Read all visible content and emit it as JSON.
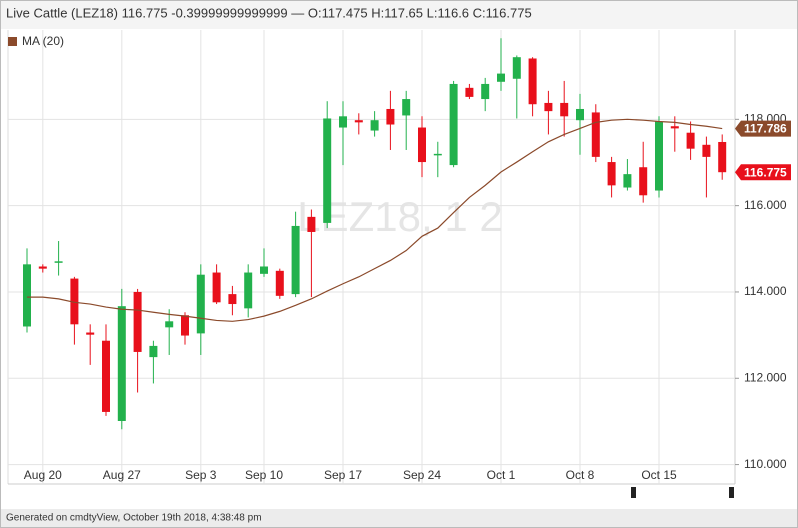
{
  "chart_data": {
    "type": "candlestick",
    "title": "Live Cattle (LEZ18) 116.775 -0.39999999999999 — O:117.475 H:117.65 L:116.6 C:116.775",
    "watermark": "LEZ18, 1 2",
    "footer": "Generated on cmdtyView, October 19th 2018, 4:38:48 pm",
    "categories": [
      null,
      "Aug 20",
      null,
      null,
      null,
      null,
      "Aug 27",
      null,
      null,
      null,
      null,
      "Sep 3",
      null,
      null,
      null,
      "Sep 10",
      null,
      null,
      null,
      null,
      "Sep 17",
      null,
      null,
      null,
      null,
      "Sep 24",
      null,
      null,
      null,
      null,
      "Oct 1",
      null,
      null,
      null,
      null,
      "Oct 8",
      null,
      null,
      null,
      null,
      "Oct 15",
      null,
      null,
      null,
      null
    ],
    "open": [
      113.2,
      114.59,
      114.68,
      114.31,
      113.06,
      112.87,
      111.01,
      114.0,
      112.49,
      113.18,
      113.46,
      113.04,
      114.45,
      113.95,
      113.62,
      114.42,
      114.49,
      113.95,
      115.74,
      115.6,
      117.81,
      117.98,
      117.74,
      118.24,
      118.09,
      117.81,
      117.18,
      116.94,
      118.73,
      118.47,
      118.87,
      118.94,
      119.41,
      118.38,
      118.38,
      117.98,
      118.16,
      117.01,
      116.42,
      116.89,
      116.35,
      117.84,
      117.69,
      117.41,
      117.475
    ],
    "high": [
      115.01,
      114.64,
      115.18,
      114.35,
      113.25,
      113.25,
      114.07,
      114.07,
      112.87,
      113.6,
      113.53,
      114.64,
      114.64,
      114.14,
      114.64,
      115.01,
      114.54,
      115.86,
      115.91,
      118.42,
      118.42,
      118.14,
      118.19,
      118.66,
      118.66,
      118.07,
      117.48,
      118.89,
      118.82,
      118.96,
      119.88,
      119.48,
      119.44,
      118.66,
      118.89,
      118.59,
      118.35,
      117.13,
      117.08,
      117.48,
      118.07,
      118.07,
      117.95,
      117.6,
      117.65
    ],
    "low": [
      113.06,
      114.45,
      114.38,
      112.78,
      112.31,
      111.13,
      110.82,
      111.67,
      111.88,
      112.54,
      112.78,
      112.54,
      113.72,
      113.46,
      113.41,
      114.35,
      113.84,
      113.88,
      113.88,
      115.48,
      116.94,
      117.65,
      117.6,
      117.29,
      117.29,
      116.66,
      116.66,
      116.89,
      118.47,
      118.19,
      118.66,
      118.02,
      118.07,
      117.65,
      117.6,
      117.18,
      117.01,
      116.19,
      116.35,
      116.07,
      116.19,
      117.25,
      117.06,
      116.19,
      116.6
    ],
    "close": [
      114.64,
      114.54,
      114.71,
      113.25,
      113.01,
      111.22,
      113.67,
      112.61,
      112.75,
      113.32,
      112.99,
      114.4,
      113.76,
      113.72,
      114.45,
      114.59,
      113.91,
      115.53,
      115.39,
      118.02,
      118.07,
      117.93,
      117.98,
      117.88,
      118.47,
      117.01,
      117.2,
      118.82,
      118.52,
      118.82,
      119.06,
      119.44,
      118.35,
      118.19,
      118.07,
      118.24,
      117.13,
      116.47,
      116.73,
      116.24,
      117.95,
      117.79,
      117.32,
      117.13,
      116.775
    ],
    "up_color": "#22b14c",
    "down_color": "#e8101b",
    "overlays": [
      {
        "name": "MA (20)",
        "color": "#8b4a2b",
        "values": [
          113.88,
          113.88,
          113.84,
          113.76,
          113.72,
          113.65,
          113.6,
          113.58,
          113.53,
          113.48,
          113.44,
          113.39,
          113.34,
          113.32,
          113.36,
          113.44,
          113.55,
          113.69,
          113.84,
          114.02,
          114.19,
          114.35,
          114.54,
          114.73,
          114.96,
          115.29,
          115.48,
          115.84,
          116.19,
          116.47,
          116.78,
          117.01,
          117.25,
          117.48,
          117.65,
          117.79,
          117.93,
          117.98,
          118.0,
          117.98,
          117.95,
          117.93,
          117.88,
          117.84,
          117.786
        ]
      }
    ],
    "price_tags": [
      {
        "value": 117.786,
        "color": "#8b4a2b"
      },
      {
        "value": 116.775,
        "color": "#e8101b"
      }
    ],
    "ylim": [
      109.55,
      120.07
    ],
    "yticks": [
      {
        "value": 110,
        "label": "110.000"
      },
      {
        "value": 112,
        "label": "112.000"
      },
      {
        "value": 114,
        "label": "114.000"
      },
      {
        "value": 116,
        "label": "116.000"
      },
      {
        "value": 118,
        "label": "118.000"
      }
    ],
    "grid": true
  }
}
